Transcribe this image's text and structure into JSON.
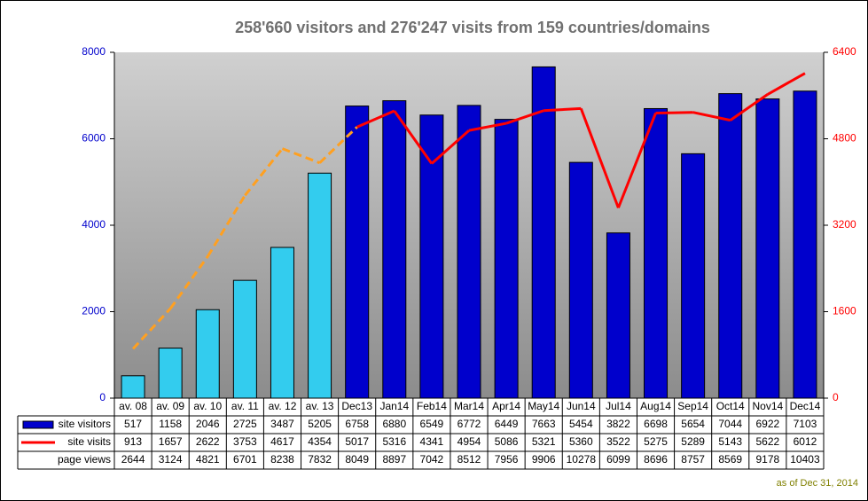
{
  "chart_data": {
    "type": "bar_line_table",
    "title": "258'660 visitors and 276'247 visits from 159 countries/domains",
    "footnote": "as of Dec 31, 2014",
    "categories": [
      "av. 08",
      "av. 09",
      "av. 10",
      "av. 11",
      "av. 12",
      "av. 13",
      "Dec13",
      "Jan14",
      "Feb14",
      "Mar14",
      "Apr14",
      "May14",
      "Jun14",
      "Jul14",
      "Aug14",
      "Sep14",
      "Oct14",
      "Nov14",
      "Dec14"
    ],
    "ylim": [
      0,
      8000
    ],
    "yticks": [
      0,
      2000,
      4000,
      6000,
      8000
    ],
    "y_color": "#0000cc",
    "y2lim": [
      0,
      6400
    ],
    "y2ticks": [
      0,
      1600,
      3200,
      4800,
      6400
    ],
    "y2_color": "#ff0000",
    "series": [
      {
        "name": "site visitors",
        "kind": "bar",
        "color": "#0000cc",
        "point_colors": [
          "#33ccee",
          "#33ccee",
          "#33ccee",
          "#33ccee",
          "#33ccee",
          "#33ccee",
          "#0000cc",
          "#0000cc",
          "#0000cc",
          "#0000cc",
          "#0000cc",
          "#0000cc",
          "#0000cc",
          "#0000cc",
          "#0000cc",
          "#0000cc",
          "#0000cc",
          "#0000cc",
          "#0000cc"
        ],
        "values": [
          517,
          1158,
          2046,
          2725,
          3487,
          5205,
          6758,
          6880,
          6549,
          6772,
          6449,
          7663,
          5454,
          3822,
          6698,
          5654,
          7044,
          6922,
          7103
        ]
      },
      {
        "name": "site visits",
        "kind": "line",
        "axis": "y2",
        "color": "#ff0000",
        "point_colors": [
          "#ffa020",
          "#ffa020",
          "#ffa020",
          "#ffa020",
          "#ffa020",
          "#ffa020",
          "#ff0000",
          "#ff0000",
          "#ff0000",
          "#ff0000",
          "#ff0000",
          "#ff0000",
          "#ff0000",
          "#ff0000",
          "#ff0000",
          "#ff0000",
          "#ff0000",
          "#ff0000",
          "#ff0000"
        ],
        "point_styles": [
          "dashed",
          "dashed",
          "dashed",
          "dashed",
          "dashed",
          "dashed",
          "solid",
          "solid",
          "solid",
          "solid",
          "solid",
          "solid",
          "solid",
          "solid",
          "solid",
          "solid",
          "solid",
          "solid",
          "solid"
        ],
        "values": [
          913,
          1657,
          2622,
          3753,
          4617,
          4354,
          5017,
          5316,
          4341,
          4954,
          5086,
          5321,
          5360,
          3522,
          5275,
          5289,
          5143,
          5622,
          6012
        ]
      }
    ],
    "extra_rows": [
      {
        "name": "page views",
        "values": [
          2644,
          3124,
          4821,
          6701,
          8238,
          7832,
          8049,
          8897,
          7042,
          8512,
          7956,
          9906,
          10278,
          6099,
          8696,
          8757,
          8569,
          9178,
          10403
        ]
      }
    ]
  }
}
